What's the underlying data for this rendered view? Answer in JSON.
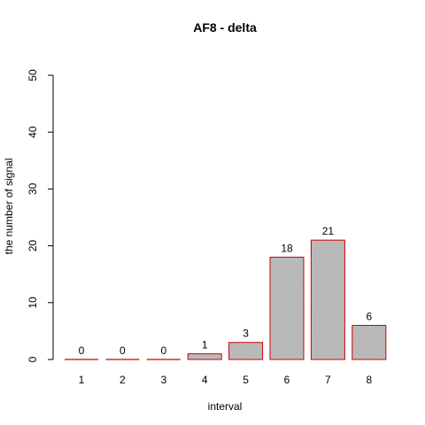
{
  "chart_data": {
    "type": "bar",
    "title": "AF8  -  delta",
    "xlabel": "interval",
    "ylabel": "the number of signal",
    "categories": [
      "1",
      "2",
      "3",
      "4",
      "5",
      "6",
      "7",
      "8"
    ],
    "values": [
      0,
      0,
      0,
      1,
      3,
      18,
      21,
      6
    ],
    "data_labels": [
      "0",
      "0",
      "0",
      "1",
      "3",
      "18",
      "21",
      "6"
    ],
    "ylim": [
      0,
      50
    ],
    "yticks": [
      "0",
      "10",
      "20",
      "30",
      "40",
      "50"
    ],
    "grid": false,
    "legend": "none",
    "bar_border_color": "#cc0000",
    "bar_fill_color": "#bfbfbf",
    "bar_fill_pattern": "diagonal-hatch"
  }
}
